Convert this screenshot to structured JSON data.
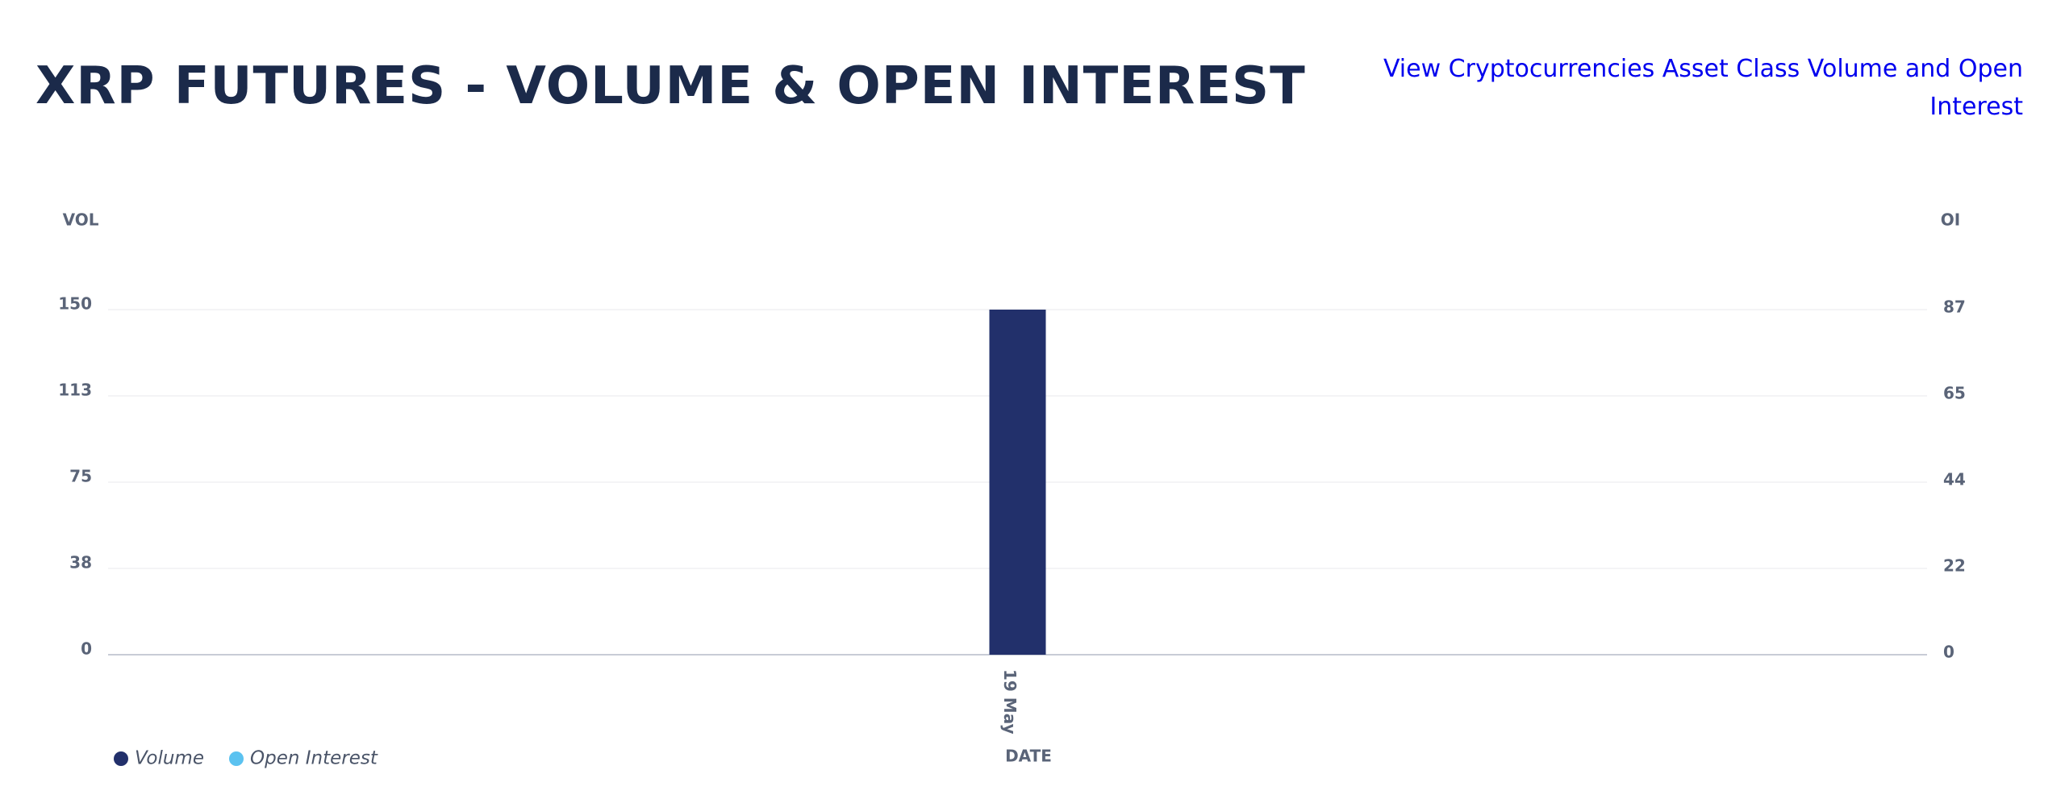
{
  "header": {
    "title": "XRP FUTURES - VOLUME & OPEN INTEREST",
    "link": "View Cryptocurrencies Asset Class Volume and Open Interest"
  },
  "chart_data": {
    "type": "bar",
    "categories": [
      "19 May"
    ],
    "series": [
      {
        "name": "Volume",
        "color": "#22306b",
        "values": [
          150
        ]
      },
      {
        "name": "Open Interest",
        "color": "#5bc2f0",
        "values": [
          null
        ],
        "axis": "y2"
      }
    ],
    "y_label": "VOL",
    "y2_label": "OI",
    "x_label": "DATE",
    "ylim": [
      0,
      150
    ],
    "yticks": [
      0,
      {
        "value": 37.5,
        "label": "38"
      },
      75,
      {
        "value": 112.5,
        "label": "113"
      },
      150
    ],
    "y2lim": [
      0,
      87
    ],
    "y2ticks": [
      0,
      {
        "value": 21.75,
        "label": "22"
      },
      {
        "value": 43.5,
        "label": "44"
      },
      {
        "value": 65.25,
        "label": "65"
      },
      87
    ],
    "grid": true
  }
}
